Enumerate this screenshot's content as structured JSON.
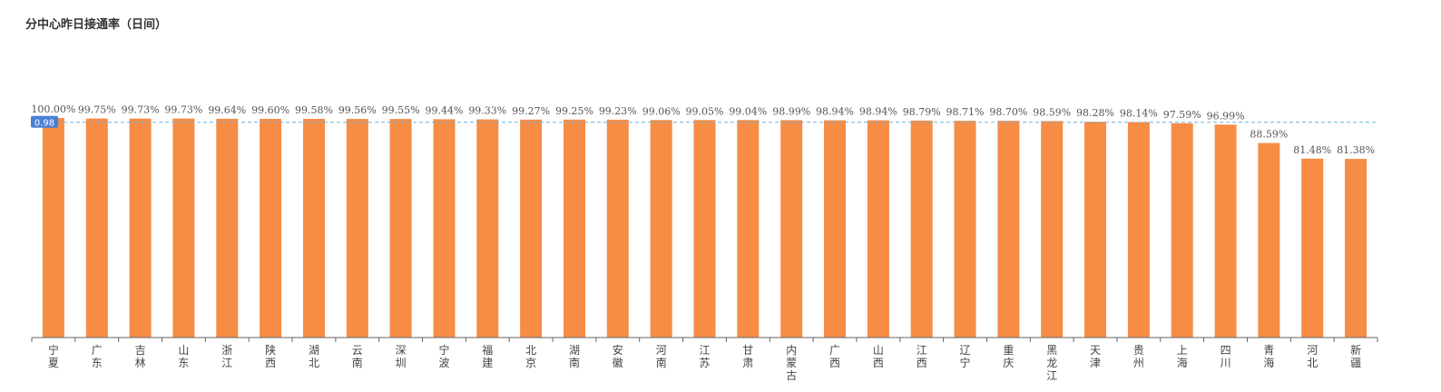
{
  "chart_data": {
    "type": "bar",
    "title": "分中心昨日接通率（日间）",
    "categories": [
      "宁夏",
      "广东",
      "吉林",
      "山东",
      "浙江",
      "陕西",
      "湖北",
      "云南",
      "深圳",
      "宁波",
      "福建",
      "北京",
      "湖南",
      "安徽",
      "河南",
      "江苏",
      "甘肃",
      "内蒙古",
      "广西",
      "山西",
      "江西",
      "辽宁",
      "重庆",
      "黑龙江",
      "天津",
      "贵州",
      "上海",
      "四川",
      "青海",
      "河北",
      "新疆"
    ],
    "values": [
      100.0,
      99.75,
      99.73,
      99.73,
      99.64,
      99.6,
      99.58,
      99.56,
      99.55,
      99.44,
      99.33,
      99.27,
      99.25,
      99.23,
      99.06,
      99.05,
      99.04,
      98.99,
      98.94,
      98.94,
      98.79,
      98.71,
      98.7,
      98.59,
      98.28,
      98.14,
      97.59,
      96.99,
      88.59,
      81.48,
      81.38
    ],
    "value_labels": [
      "100.00%",
      "99.75%",
      "99.73%",
      "99.73%",
      "99.64%",
      "99.60%",
      "99.58%",
      "99.56%",
      "99.55%",
      "99.44%",
      "99.33%",
      "99.27%",
      "99.25%",
      "99.23%",
      "99.06%",
      "99.05%",
      "99.04%",
      "98.99%",
      "98.94%",
      "98.94%",
      "98.79%",
      "98.71%",
      "98.70%",
      "98.59%",
      "98.28%",
      "98.14%",
      "97.59%",
      "96.99%",
      "88.59%",
      "81.48%",
      "81.38%"
    ],
    "reference_line": {
      "value": 0.98,
      "label": "0.98",
      "color": "#6fb3e0",
      "label_bg": "#4a7fd4"
    },
    "bar_color": "#f78c45",
    "axis_color": "#666666",
    "xlabel": "",
    "ylabel": "",
    "ylim": [
      0,
      100
    ],
    "grid": false,
    "legend": "none"
  }
}
